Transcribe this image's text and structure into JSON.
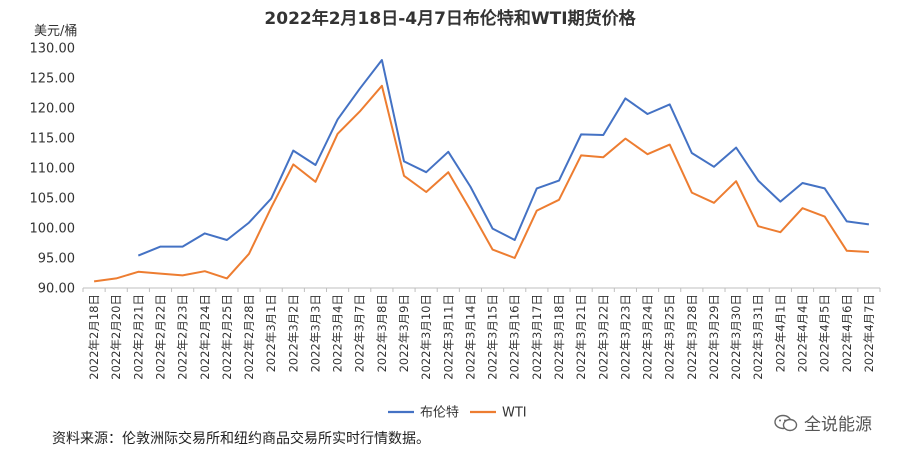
{
  "chart_data": {
    "type": "line",
    "title": "2022年2月18日-4月7日布伦特和WTI期货价格",
    "ylabel": "美元/桶",
    "ylim": [
      90,
      130
    ],
    "yticks": [
      "90.00",
      "95.00",
      "100.00",
      "105.00",
      "110.00",
      "115.00",
      "120.00",
      "125.00",
      "130.00"
    ],
    "categories": [
      "2022年2月18日",
      "2022年2月20日",
      "2022年2月21日",
      "2022年2月22日",
      "2022年2月23日",
      "2022年2月24日",
      "2022年2月25日",
      "2022年2月28日",
      "2022年3月1日",
      "2022年3月2日",
      "2022年3月3日",
      "2022年3月4日",
      "2022年3月7日",
      "2022年3月8日",
      "2022年3月9日",
      "2022年3月10日",
      "2022年3月11日",
      "2022年3月14日",
      "2022年3月15日",
      "2022年3月16日",
      "2022年3月17日",
      "2022年3月18日",
      "2022年3月21日",
      "2022年3月22日",
      "2022年3月23日",
      "2022年3月24日",
      "2022年3月25日",
      "2022年3月28日",
      "2022年3月29日",
      "2022年3月30日",
      "2022年3月31日",
      "2022年4月1日",
      "2022年4月4日",
      "2022年4月5日",
      "2022年4月6日",
      "2022年4月7日"
    ],
    "series": [
      {
        "name": "布伦特",
        "color": "#4472C4",
        "values": [
          null,
          null,
          95.4,
          96.9,
          96.9,
          99.1,
          98.0,
          100.9,
          104.9,
          112.9,
          110.5,
          118.1,
          123.2,
          128.0,
          111.1,
          109.3,
          112.7,
          106.9,
          99.9,
          98.0,
          106.6,
          107.9,
          115.6,
          115.5,
          121.6,
          119.0,
          120.6,
          112.5,
          110.2,
          113.4,
          107.9,
          104.4,
          107.5,
          106.6,
          101.1,
          100.6
        ]
      },
      {
        "name": "WTI",
        "color": "#ED7D31",
        "values": [
          91.1,
          91.6,
          92.7,
          92.4,
          92.1,
          92.8,
          91.6,
          95.7,
          103.4,
          110.6,
          107.7,
          115.7,
          119.4,
          123.7,
          108.7,
          106.0,
          109.3,
          103.0,
          96.4,
          95.0,
          102.9,
          104.7,
          112.1,
          111.8,
          114.9,
          112.3,
          113.9,
          105.9,
          104.2,
          107.8,
          100.3,
          99.3,
          103.3,
          101.9,
          96.2,
          96.0
        ]
      }
    ],
    "legend_position": "bottom-center",
    "grid": false
  },
  "footer": {
    "source": "资料来源：伦敦洲际交易所和纽约商品交易所实时行情数据。",
    "watermark": "全说能源"
  }
}
